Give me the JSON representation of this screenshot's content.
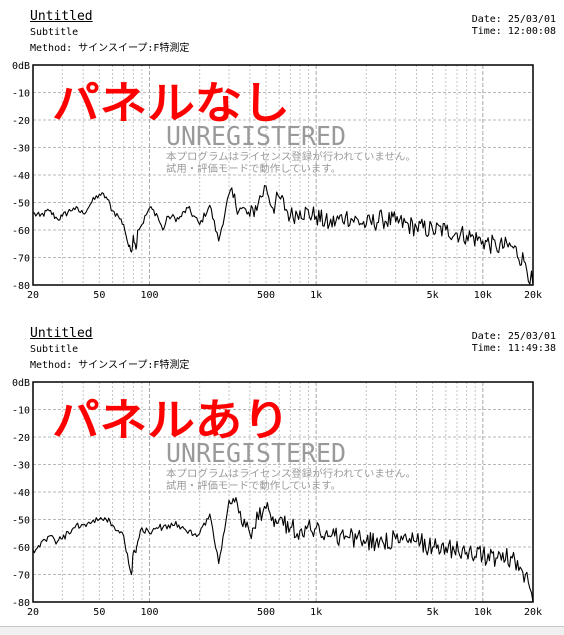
{
  "chart_data": [
    {
      "type": "line",
      "title": "Untitled",
      "subtitle": "Subtitle",
      "method": "Method: サインスイープ:F特測定",
      "date": "Date: 25/03/01",
      "time": "Time: 12:00:08",
      "annotation": "パネルなし",
      "watermark": "UNREGISTERED",
      "watermark_note_1": "本プログラムはライセンス登録が行われていません。",
      "watermark_note_2": "試用・評価モードで動作しています。",
      "x_scale": "log",
      "xlim": [
        20,
        20000
      ],
      "ylim": [
        -80,
        0
      ],
      "grid": true,
      "x_ticks": [
        20,
        50,
        100,
        500,
        1000,
        5000,
        10000,
        20000
      ],
      "x_tick_labels": [
        "20",
        "50",
        "100",
        "500",
        "1k",
        "5k",
        "10k",
        "20k"
      ],
      "y_ticks": [
        0,
        -10,
        -20,
        -30,
        -40,
        -50,
        -60,
        -70,
        -80
      ],
      "y_tick_labels": [
        "0dB",
        "-10",
        "-20",
        "-30",
        "-40",
        "-50",
        "-60",
        "-70",
        "-80"
      ],
      "series": [
        {
          "color": "#000000",
          "x": [
            20,
            22,
            25,
            28,
            30,
            35,
            40,
            45,
            50,
            55,
            60,
            65,
            70,
            75,
            78,
            80,
            83,
            85,
            90,
            100,
            110,
            120,
            130,
            150,
            170,
            200,
            230,
            260,
            300,
            350,
            400,
            450,
            500,
            550,
            600,
            700,
            800,
            1000,
            1200,
            1500,
            2000,
            2500,
            3000,
            4000,
            5000,
            6000,
            8000,
            10000,
            12000,
            15000,
            18000,
            20000
          ],
          "y": [
            -54,
            -55,
            -53,
            -56,
            -55,
            -52,
            -54,
            -50,
            -47,
            -48,
            -53,
            -55,
            -58,
            -66,
            -68,
            -62,
            -67,
            -60,
            -58,
            -52,
            -54,
            -60,
            -55,
            -56,
            -52,
            -58,
            -51,
            -64,
            -47,
            -52,
            -55,
            -50,
            -44,
            -52,
            -48,
            -55,
            -53,
            -55,
            -58,
            -55,
            -58,
            -56,
            -57,
            -59,
            -60,
            -60,
            -62,
            -64,
            -66,
            -66,
            -72,
            -80
          ]
        }
      ]
    },
    {
      "type": "line",
      "title": "Untitled",
      "subtitle": "Subtitle",
      "method": "Method: サインスイープ:F特測定",
      "date": "Date: 25/03/01",
      "time": "Time: 11:49:38",
      "annotation": "パネルあり",
      "watermark": "UNREGISTERED",
      "watermark_note_1": "本プログラムはライセンス登録が行われていません。",
      "watermark_note_2": "試用・評価モードで動作しています。",
      "x_scale": "log",
      "xlim": [
        20,
        20000
      ],
      "ylim": [
        -80,
        0
      ],
      "grid": true,
      "x_ticks": [
        20,
        50,
        100,
        500,
        1000,
        5000,
        10000,
        20000
      ],
      "x_tick_labels": [
        "20",
        "50",
        "100",
        "500",
        "1k",
        "5k",
        "10k",
        "20k"
      ],
      "y_ticks": [
        0,
        -10,
        -20,
        -30,
        -40,
        -50,
        -60,
        -70,
        -80
      ],
      "y_tick_labels": [
        "0dB",
        "-10",
        "-20",
        "-30",
        "-40",
        "-50",
        "-60",
        "-70",
        "-80"
      ],
      "series": [
        {
          "color": "#000000",
          "x": [
            20,
            22,
            25,
            28,
            30,
            35,
            40,
            45,
            50,
            55,
            60,
            65,
            70,
            75,
            78,
            80,
            83,
            85,
            90,
            100,
            110,
            120,
            130,
            150,
            170,
            200,
            230,
            260,
            300,
            350,
            400,
            450,
            500,
            550,
            600,
            700,
            800,
            1000,
            1200,
            1500,
            2000,
            2500,
            3000,
            4000,
            5000,
            6000,
            8000,
            10000,
            12000,
            15000,
            18000,
            20000
          ],
          "y": [
            -61,
            -60,
            -56,
            -58,
            -57,
            -53,
            -52,
            -51,
            -50,
            -50,
            -52,
            -54,
            -56,
            -66,
            -70,
            -62,
            -62,
            -58,
            -53,
            -55,
            -53,
            -53,
            -52,
            -52,
            -55,
            -55,
            -48,
            -66,
            -43,
            -47,
            -55,
            -50,
            -46,
            -49,
            -50,
            -53,
            -54,
            -53,
            -56,
            -56,
            -58,
            -58,
            -57,
            -58,
            -60,
            -60,
            -62,
            -63,
            -64,
            -64,
            -70,
            -80
          ]
        }
      ]
    }
  ]
}
